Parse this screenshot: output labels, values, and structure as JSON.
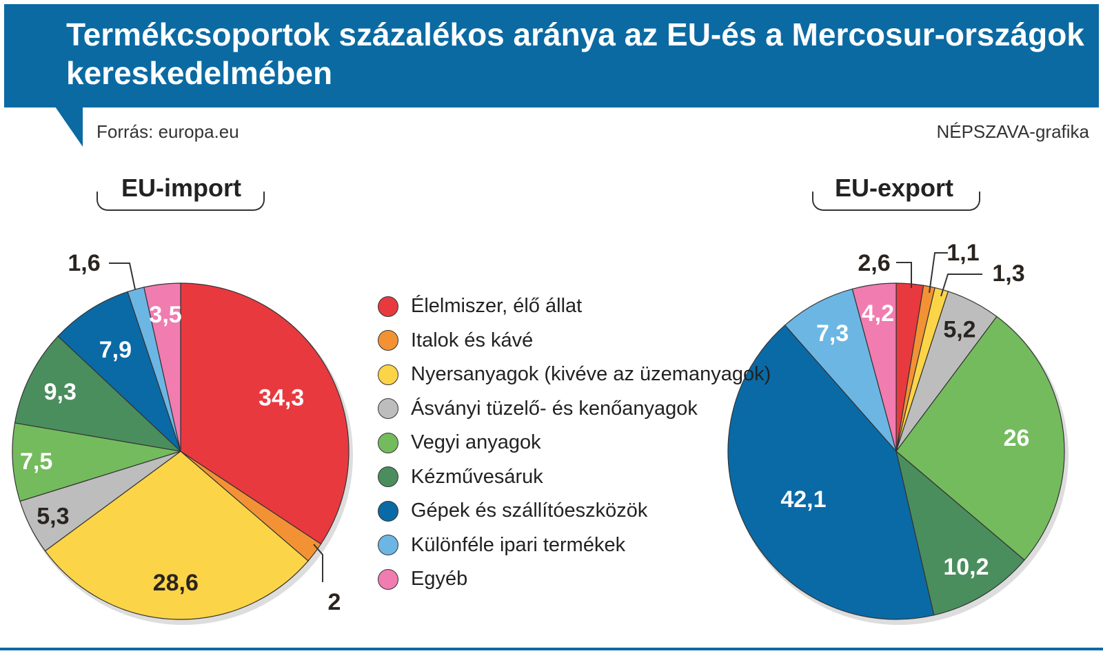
{
  "header": {
    "title": "Termékcsoportok százalékos aránya az EU-és a Mercosur-országok kereskedelmében",
    "source": "Forrás: europa.eu",
    "credit": "NÉPSZAVA-grafika"
  },
  "chart_data": [
    {
      "type": "pie",
      "title": "EU-import",
      "categories": [
        "Élelmiszer, élő állat",
        "Italok és kávé",
        "Nyersanyagok (kivéve az üzemanyagok)",
        "Ásványi tüzelő- és kenőanyagok",
        "Vegyi anyagok",
        "Kézművesáruk",
        "Gépek és szállítóeszközök",
        "Különféle ipari termékek",
        "Egyéb"
      ],
      "values": [
        34.3,
        2,
        28.6,
        5.3,
        7.5,
        9.3,
        7.9,
        1.6,
        3.5
      ],
      "labels": [
        "34,3",
        "2",
        "28,6",
        "5,3",
        "7,5",
        "9,3",
        "7,9",
        "1,6",
        "3,5"
      ]
    },
    {
      "type": "pie",
      "title": "EU-export",
      "categories": [
        "Élelmiszer, élő állat",
        "Italok és kávé",
        "Nyersanyagok (kivéve az üzemanyagok)",
        "Ásványi tüzelő- és kenőanyagok",
        "Vegyi anyagok",
        "Kézművesáruk",
        "Gépek és szállítóeszközök",
        "Különféle ipari termékek",
        "Egyéb"
      ],
      "values": [
        2.6,
        1.1,
        1.3,
        5.2,
        26,
        10.2,
        42.1,
        7.3,
        4.2
      ],
      "labels": [
        "2,6",
        "1,1",
        "1,3",
        "5,2",
        "26",
        "10,2",
        "42,1",
        "7,3",
        "4,2"
      ]
    }
  ],
  "legend": [
    {
      "label": "Élelmiszer, élő állat",
      "color": "#e8393f"
    },
    {
      "label": "Italok és kávé",
      "color": "#f39234"
    },
    {
      "label": "Nyersanyagok (kivéve az üzemanyagok)",
      "color": "#fcd447"
    },
    {
      "label": "Ásványi tüzelő- és kenőanyagok",
      "color": "#bdbdbd"
    },
    {
      "label": "Vegyi anyagok",
      "color": "#74bb5d"
    },
    {
      "label": "Kézművesáruk",
      "color": "#4a8e5e"
    },
    {
      "label": "Gépek és szállítóeszközök",
      "color": "#0a6aa6"
    },
    {
      "label": "Különféle ipari termékek",
      "color": "#6cb6e4"
    },
    {
      "label": "Egyéb",
      "color": "#f07cb0"
    }
  ]
}
